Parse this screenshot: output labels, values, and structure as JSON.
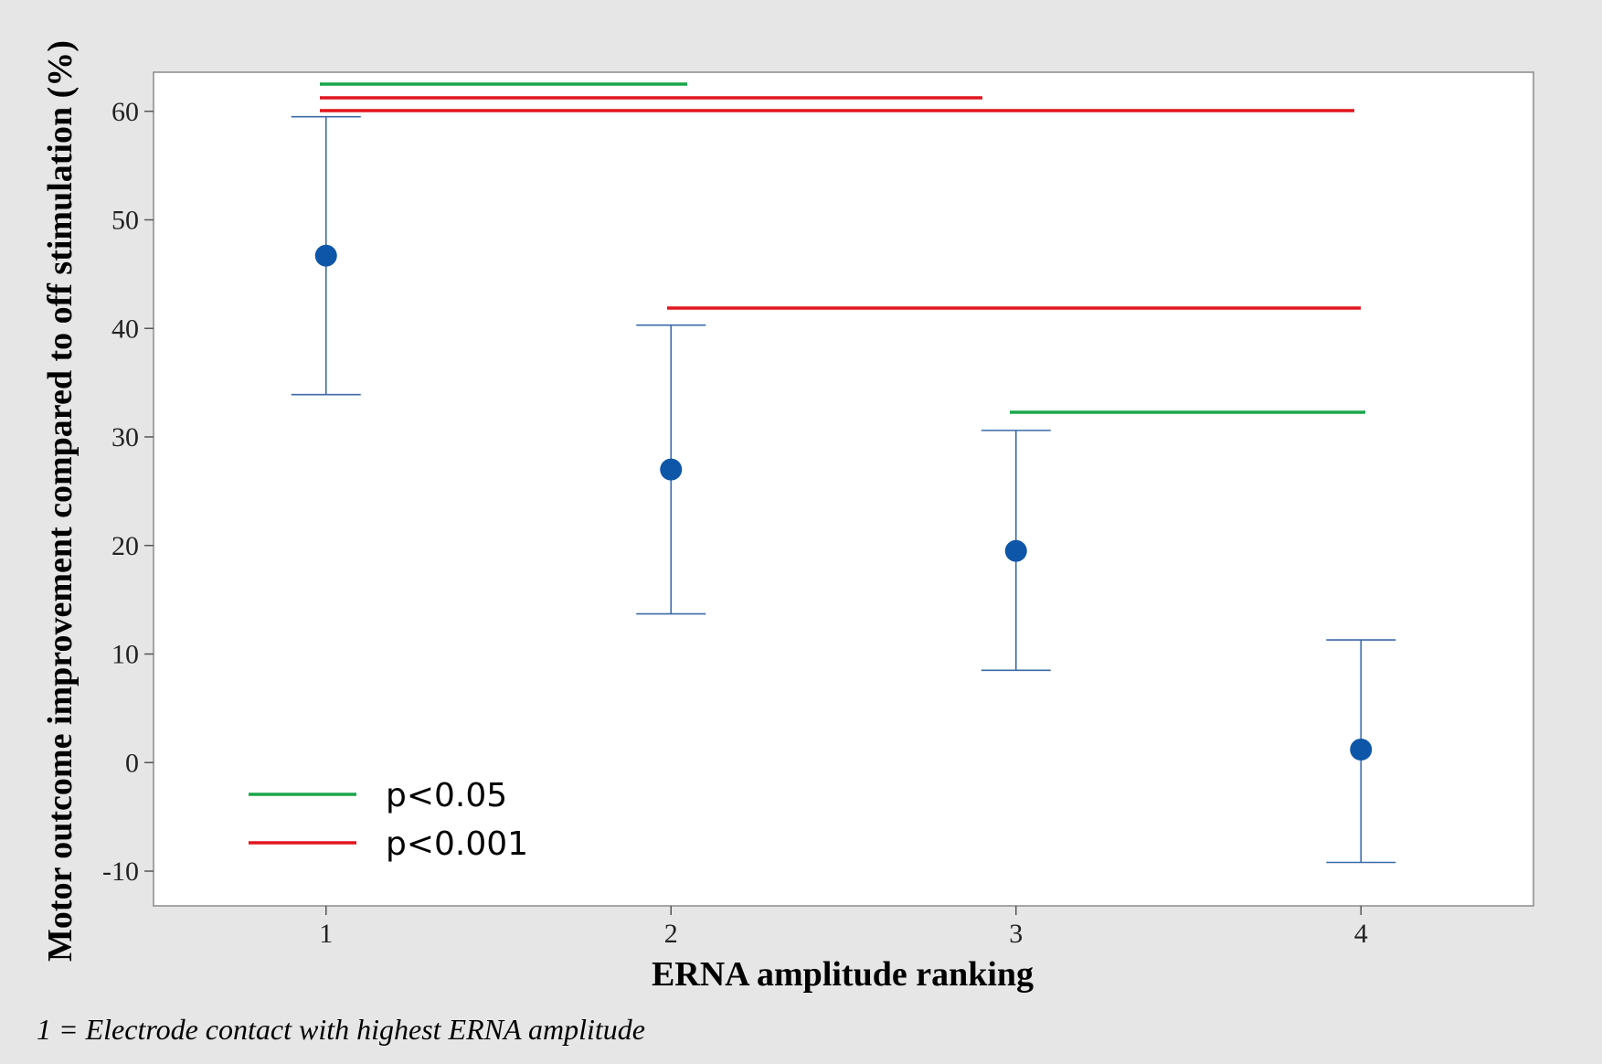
{
  "chart_data": {
    "type": "scatter",
    "xlabel": "ERNA amplitude ranking",
    "ylabel": "Motor outcome improvement compared to off stimulation (%)",
    "footnote": "1 = Electrode contact with highest ERNA amplitude",
    "x_ticks": [
      "1",
      "2",
      "3",
      "4"
    ],
    "y_ticks": [
      "-10",
      "0",
      "10",
      "20",
      "30",
      "40",
      "50",
      "60"
    ],
    "xlim": [
      0.5,
      4.5
    ],
    "ylim": [
      -13.2,
      63.6
    ],
    "grid": false,
    "legend_placement": "bottom-left",
    "points": [
      {
        "x": 1,
        "y": 46.7,
        "lower": 33.9,
        "upper": 59.5
      },
      {
        "x": 2,
        "y": 27.0,
        "lower": 13.7,
        "upper": 40.3
      },
      {
        "x": 3,
        "y": 19.5,
        "lower": 8.5,
        "upper": 30.6
      },
      {
        "x": 4,
        "y": 1.2,
        "lower": -9.2,
        "upper": 11.3
      }
    ],
    "significance": [
      {
        "from": 1,
        "to": 2,
        "level": "p<0.05"
      },
      {
        "from": 1,
        "to": 3,
        "level": "p<0.001"
      },
      {
        "from": 1,
        "to": 4,
        "level": "p<0.001"
      },
      {
        "from": 2,
        "to": 4,
        "level": "p<0.001"
      },
      {
        "from": 3,
        "to": 4,
        "level": "p<0.05"
      }
    ],
    "legend": [
      {
        "label": "p<0.05",
        "color": "#1aa64a"
      },
      {
        "label": "p<0.001",
        "color": "#e0161e"
      }
    ],
    "colors": {
      "marker": "#0e56a8",
      "errorbar": "#3a6aa8"
    }
  }
}
